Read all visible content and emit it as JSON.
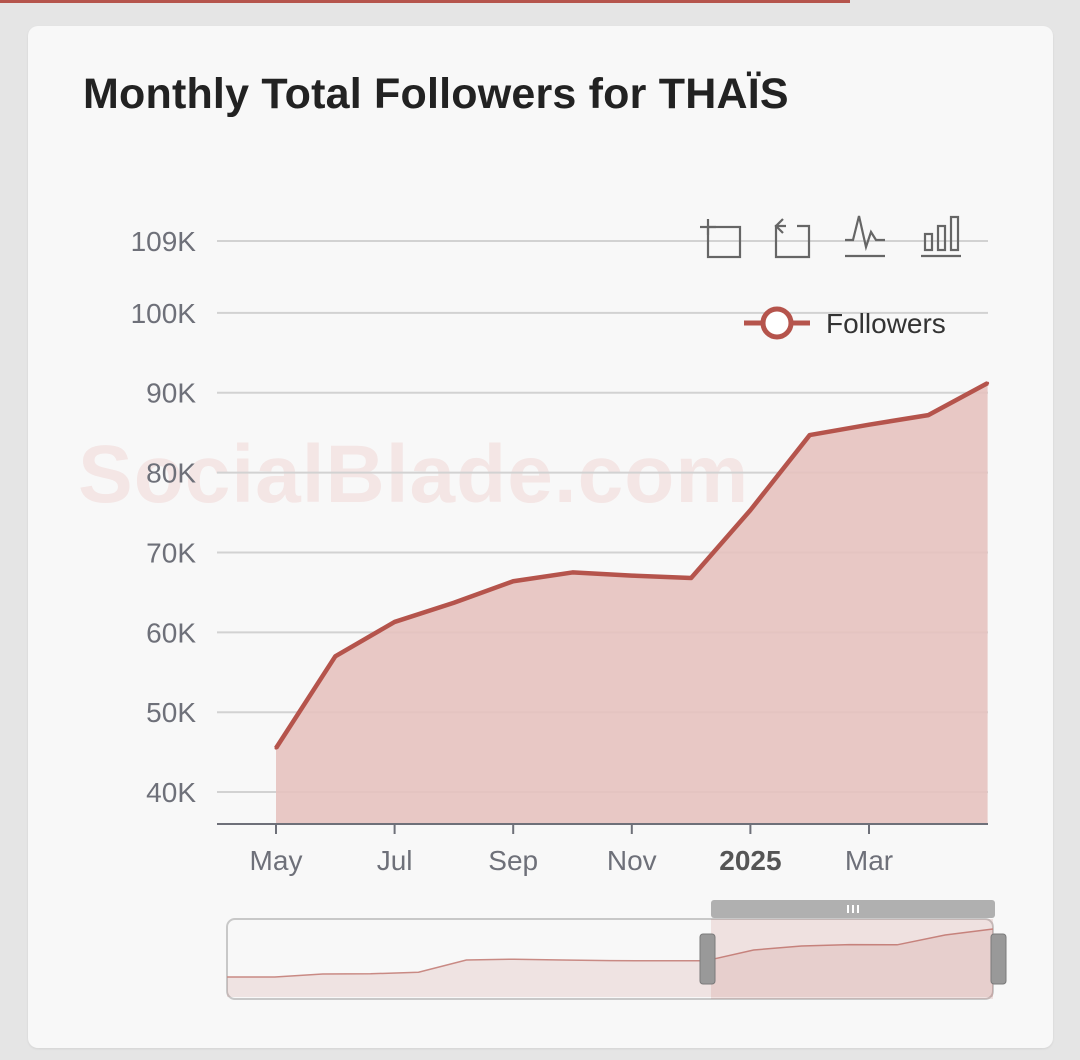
{
  "card": {
    "title": "Monthly Total Followers for THAÏS"
  },
  "watermark": "SocialBlade.com",
  "toolbox": [
    {
      "name": "zoom-icon"
    },
    {
      "name": "zoom-reset-icon"
    },
    {
      "name": "line-chart-icon"
    },
    {
      "name": "bar-chart-icon"
    }
  ],
  "colors": {
    "series": "#b5544c",
    "area": "#e5c2bf",
    "accent": "#b5544c"
  },
  "chart_data": {
    "type": "area",
    "title": "Monthly Total Followers for THAÏS",
    "x": [
      "2024-05",
      "2024-06",
      "2024-07",
      "2024-08",
      "2024-09",
      "2024-10",
      "2024-11",
      "2024-12",
      "2025-01",
      "2025-02",
      "2025-03",
      "2025-04",
      "2025-05"
    ],
    "series": [
      {
        "name": "Followers",
        "values": [
          45500,
          57000,
          61300,
          63700,
          66400,
          67500,
          67100,
          66800,
          75300,
          84700,
          86000,
          87200,
          91200
        ]
      }
    ],
    "x_tick_labels": [
      "May",
      "Jul",
      "Sep",
      "Nov",
      "2025",
      "Mar"
    ],
    "y_tick_labels": [
      "40K",
      "50K",
      "60K",
      "70K",
      "80K",
      "90K",
      "100K",
      "109K"
    ],
    "y_ticks": [
      40000,
      50000,
      60000,
      70000,
      80000,
      90000,
      100000,
      109000
    ],
    "ylim": [
      36000,
      109000
    ],
    "grid": true,
    "legend": "top-right",
    "data_zoom": {
      "selected_range": [
        "2024-05",
        "2025-05"
      ],
      "overview_values": [
        4000,
        4000,
        5500,
        5600,
        6400,
        12500,
        12900,
        12500,
        12200,
        12100,
        12100,
        17500,
        19500,
        20200,
        20100,
        25000,
        28000
      ]
    }
  }
}
